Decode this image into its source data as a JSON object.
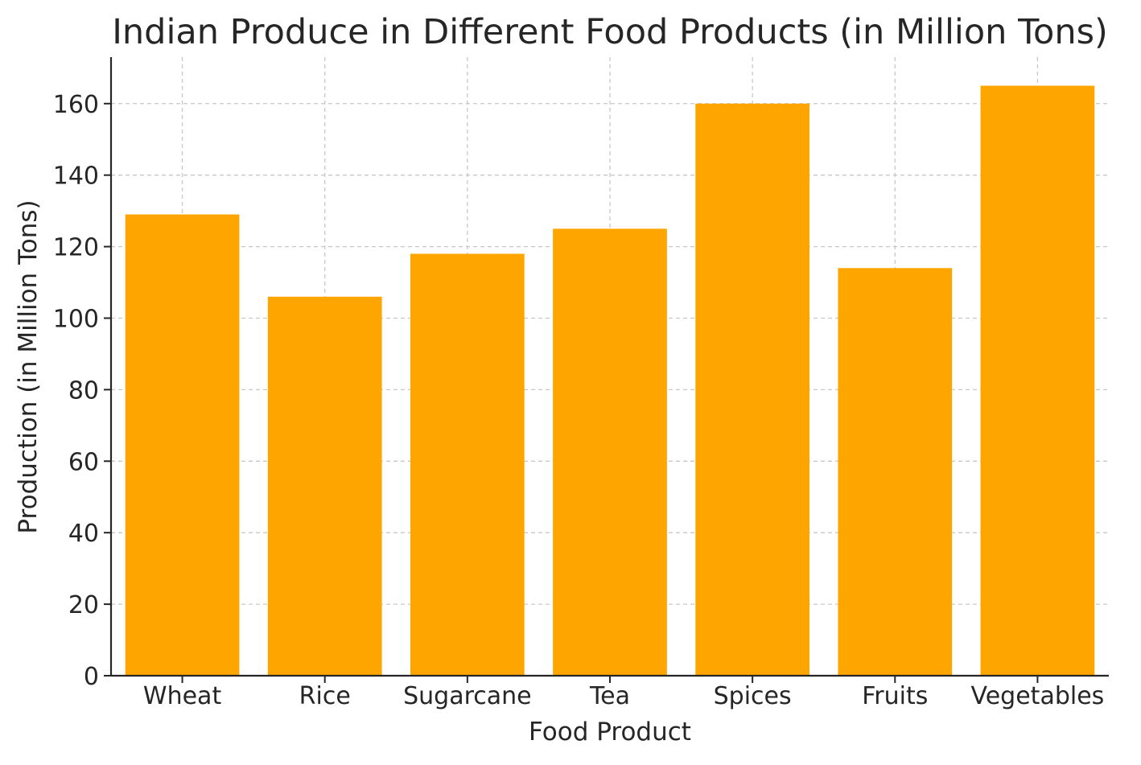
{
  "chart_data": {
    "type": "bar",
    "title": "Indian Produce in Different Food Products (in Million Tons)",
    "xlabel": "Food Product",
    "ylabel": "Production (in Million Tons)",
    "categories": [
      "Wheat",
      "Rice",
      "Sugarcane",
      "Tea",
      "Spices",
      "Fruits",
      "Vegetables"
    ],
    "values": [
      129,
      106,
      118,
      125,
      160,
      114,
      165
    ],
    "ylim": [
      0,
      173
    ],
    "yticks": [
      0,
      20,
      40,
      60,
      80,
      100,
      120,
      140,
      160
    ],
    "grid": true,
    "bar_color": "#ffa500",
    "legend": "none"
  }
}
